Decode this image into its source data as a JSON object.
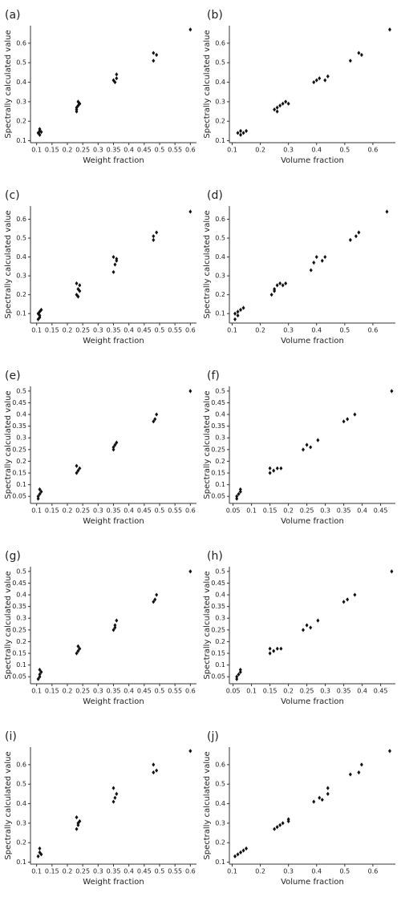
{
  "chart_data": [
    {
      "type": "scatter",
      "title": "(a)",
      "xlabel": "Weight fraction",
      "ylabel": "Spectrally calculated value",
      "color": "#111",
      "x": [
        0.105,
        0.11,
        0.11,
        0.115,
        0.11,
        0.23,
        0.235,
        0.24,
        0.23,
        0.235,
        0.24,
        0.23,
        0.355,
        0.36,
        0.35,
        0.36,
        0.48,
        0.49,
        0.48,
        0.6
      ],
      "values": [
        0.14,
        0.13,
        0.15,
        0.145,
        0.16,
        0.26,
        0.28,
        0.29,
        0.27,
        0.3,
        0.29,
        0.25,
        0.4,
        0.42,
        0.41,
        0.44,
        0.51,
        0.54,
        0.55,
        0.67
      ],
      "xlim": [
        0.08,
        0.62
      ],
      "ylim": [
        0.09,
        0.69
      ],
      "xticks": [
        0.1,
        0.15,
        0.2,
        0.25,
        0.3,
        0.35,
        0.4,
        0.45,
        0.5,
        0.55,
        0.6
      ],
      "yticks": [
        0.1,
        0.2,
        0.3,
        0.4,
        0.5,
        0.6
      ]
    },
    {
      "type": "scatter",
      "title": "(b)",
      "xlabel": "Volume fraction",
      "ylabel": "Spectrally calculated value",
      "color": "#111",
      "x": [
        0.12,
        0.13,
        0.14,
        0.15,
        0.13,
        0.25,
        0.26,
        0.27,
        0.28,
        0.29,
        0.3,
        0.26,
        0.39,
        0.4,
        0.41,
        0.44,
        0.43,
        0.52,
        0.55,
        0.56,
        0.66
      ],
      "values": [
        0.14,
        0.15,
        0.14,
        0.15,
        0.13,
        0.26,
        0.27,
        0.28,
        0.29,
        0.3,
        0.29,
        0.25,
        0.4,
        0.41,
        0.42,
        0.43,
        0.41,
        0.51,
        0.55,
        0.54,
        0.67
      ],
      "xlim": [
        0.09,
        0.68
      ],
      "ylim": [
        0.09,
        0.69
      ],
      "xticks": [
        0.1,
        0.2,
        0.3,
        0.4,
        0.5,
        0.6
      ],
      "yticks": [
        0.1,
        0.2,
        0.3,
        0.4,
        0.5,
        0.6
      ]
    },
    {
      "type": "scatter",
      "title": "(c)",
      "xlabel": "Weight fraction",
      "ylabel": "Spectrally calculated value",
      "color": "#111",
      "x": [
        0.105,
        0.11,
        0.11,
        0.115,
        0.105,
        0.11,
        0.23,
        0.235,
        0.24,
        0.23,
        0.24,
        0.235,
        0.35,
        0.355,
        0.36,
        0.35,
        0.36,
        0.48,
        0.48,
        0.49,
        0.6
      ],
      "values": [
        0.07,
        0.09,
        0.11,
        0.12,
        0.1,
        0.08,
        0.2,
        0.23,
        0.25,
        0.26,
        0.22,
        0.19,
        0.32,
        0.36,
        0.38,
        0.4,
        0.39,
        0.49,
        0.51,
        0.53,
        0.64
      ],
      "xlim": [
        0.08,
        0.62
      ],
      "ylim": [
        0.05,
        0.67
      ],
      "xticks": [
        0.1,
        0.15,
        0.2,
        0.25,
        0.3,
        0.35,
        0.4,
        0.45,
        0.5,
        0.55,
        0.6
      ],
      "yticks": [
        0.1,
        0.2,
        0.3,
        0.4,
        0.5,
        0.6
      ]
    },
    {
      "type": "scatter",
      "title": "(d)",
      "xlabel": "Volume fraction",
      "ylabel": "Spectrally calculated value",
      "color": "#111",
      "x": [
        0.11,
        0.12,
        0.12,
        0.13,
        0.14,
        0.11,
        0.24,
        0.25,
        0.26,
        0.27,
        0.28,
        0.29,
        0.25,
        0.38,
        0.39,
        0.4,
        0.42,
        0.43,
        0.52,
        0.54,
        0.55,
        0.65
      ],
      "values": [
        0.07,
        0.09,
        0.11,
        0.12,
        0.13,
        0.1,
        0.2,
        0.23,
        0.25,
        0.26,
        0.25,
        0.26,
        0.22,
        0.33,
        0.37,
        0.4,
        0.38,
        0.4,
        0.49,
        0.51,
        0.53,
        0.64
      ],
      "xlim": [
        0.09,
        0.68
      ],
      "ylim": [
        0.05,
        0.67
      ],
      "xticks": [
        0.1,
        0.2,
        0.3,
        0.4,
        0.5,
        0.6
      ],
      "yticks": [
        0.1,
        0.2,
        0.3,
        0.4,
        0.5,
        0.6
      ]
    },
    {
      "type": "scatter",
      "title": "(e)",
      "xlabel": "Weight fraction",
      "ylabel": "Spectrally calculated value",
      "color": "#111",
      "x": [
        0.105,
        0.11,
        0.11,
        0.115,
        0.105,
        0.23,
        0.235,
        0.24,
        0.23,
        0.35,
        0.355,
        0.36,
        0.35,
        0.48,
        0.485,
        0.49,
        0.6
      ],
      "values": [
        0.04,
        0.06,
        0.08,
        0.07,
        0.05,
        0.15,
        0.16,
        0.17,
        0.18,
        0.25,
        0.27,
        0.28,
        0.26,
        0.37,
        0.38,
        0.4,
        0.5
      ],
      "xlim": [
        0.08,
        0.62
      ],
      "ylim": [
        0.02,
        0.52
      ],
      "xticks": [
        0.1,
        0.15,
        0.2,
        0.25,
        0.3,
        0.35,
        0.4,
        0.45,
        0.5,
        0.55,
        0.6
      ],
      "yticks": [
        0.05,
        0.1,
        0.15,
        0.2,
        0.25,
        0.3,
        0.35,
        0.4,
        0.45,
        0.5
      ]
    },
    {
      "type": "scatter",
      "title": "(f)",
      "xlabel": "Volume fraction",
      "ylabel": "Spectrally calculated value",
      "color": "#111",
      "x": [
        0.06,
        0.065,
        0.07,
        0.06,
        0.07,
        0.15,
        0.16,
        0.17,
        0.15,
        0.18,
        0.24,
        0.25,
        0.26,
        0.28,
        0.35,
        0.36,
        0.38,
        0.48
      ],
      "values": [
        0.04,
        0.06,
        0.07,
        0.05,
        0.08,
        0.15,
        0.16,
        0.17,
        0.17,
        0.17,
        0.25,
        0.27,
        0.26,
        0.29,
        0.37,
        0.38,
        0.4,
        0.5
      ],
      "xlim": [
        0.04,
        0.49
      ],
      "ylim": [
        0.02,
        0.52
      ],
      "xticks": [
        0.05,
        0.1,
        0.15,
        0.2,
        0.25,
        0.3,
        0.35,
        0.4,
        0.45
      ],
      "yticks": [
        0.05,
        0.1,
        0.15,
        0.2,
        0.25,
        0.3,
        0.35,
        0.4,
        0.45,
        0.5
      ]
    },
    {
      "type": "scatter",
      "title": "(g)",
      "xlabel": "Weight fraction",
      "ylabel": "Spectrally calculated value",
      "color": "#111",
      "x": [
        0.105,
        0.11,
        0.11,
        0.115,
        0.11,
        0.23,
        0.235,
        0.24,
        0.235,
        0.35,
        0.355,
        0.36,
        0.355,
        0.48,
        0.485,
        0.49,
        0.6
      ],
      "values": [
        0.04,
        0.06,
        0.08,
        0.07,
        0.05,
        0.15,
        0.16,
        0.17,
        0.18,
        0.25,
        0.27,
        0.29,
        0.26,
        0.37,
        0.38,
        0.4,
        0.5
      ],
      "xlim": [
        0.08,
        0.62
      ],
      "ylim": [
        0.02,
        0.52
      ],
      "xticks": [
        0.1,
        0.15,
        0.2,
        0.25,
        0.3,
        0.35,
        0.4,
        0.45,
        0.5,
        0.55,
        0.6
      ],
      "yticks": [
        0.05,
        0.1,
        0.15,
        0.2,
        0.25,
        0.3,
        0.35,
        0.4,
        0.45,
        0.5
      ]
    },
    {
      "type": "scatter",
      "title": "(h)",
      "xlabel": "Volume fraction",
      "ylabel": "Spectrally calculated value",
      "color": "#111",
      "x": [
        0.06,
        0.065,
        0.07,
        0.06,
        0.07,
        0.15,
        0.16,
        0.17,
        0.15,
        0.18,
        0.24,
        0.25,
        0.26,
        0.28,
        0.35,
        0.36,
        0.38,
        0.48
      ],
      "values": [
        0.05,
        0.06,
        0.07,
        0.04,
        0.08,
        0.15,
        0.16,
        0.17,
        0.17,
        0.17,
        0.25,
        0.27,
        0.26,
        0.29,
        0.37,
        0.38,
        0.4,
        0.5
      ],
      "xlim": [
        0.04,
        0.49
      ],
      "ylim": [
        0.02,
        0.52
      ],
      "xticks": [
        0.05,
        0.1,
        0.15,
        0.2,
        0.25,
        0.3,
        0.35,
        0.4,
        0.45
      ],
      "yticks": [
        0.05,
        0.1,
        0.15,
        0.2,
        0.25,
        0.3,
        0.35,
        0.4,
        0.45,
        0.5
      ]
    },
    {
      "type": "scatter",
      "title": "(i)",
      "xlabel": "Weight fraction",
      "ylabel": "Spectrally calculated value",
      "color": "#111",
      "x": [
        0.105,
        0.11,
        0.11,
        0.115,
        0.23,
        0.235,
        0.24,
        0.23,
        0.235,
        0.35,
        0.355,
        0.36,
        0.35,
        0.48,
        0.49,
        0.48,
        0.6
      ],
      "values": [
        0.13,
        0.15,
        0.17,
        0.14,
        0.27,
        0.29,
        0.31,
        0.33,
        0.3,
        0.41,
        0.43,
        0.45,
        0.48,
        0.56,
        0.57,
        0.6,
        0.67
      ],
      "xlim": [
        0.08,
        0.62
      ],
      "ylim": [
        0.09,
        0.69
      ],
      "xticks": [
        0.1,
        0.15,
        0.2,
        0.25,
        0.3,
        0.35,
        0.4,
        0.45,
        0.5,
        0.55,
        0.6
      ],
      "yticks": [
        0.1,
        0.2,
        0.3,
        0.4,
        0.5,
        0.6
      ]
    },
    {
      "type": "scatter",
      "title": "(j)",
      "xlabel": "Volume fraction",
      "ylabel": "Spectrally calculated value",
      "color": "#111",
      "x": [
        0.11,
        0.12,
        0.13,
        0.14,
        0.15,
        0.25,
        0.26,
        0.27,
        0.28,
        0.3,
        0.3,
        0.39,
        0.41,
        0.42,
        0.44,
        0.44,
        0.52,
        0.55,
        0.56,
        0.66
      ],
      "values": [
        0.13,
        0.14,
        0.15,
        0.16,
        0.17,
        0.27,
        0.28,
        0.29,
        0.3,
        0.32,
        0.31,
        0.41,
        0.43,
        0.42,
        0.45,
        0.48,
        0.55,
        0.56,
        0.6,
        0.67
      ],
      "xlim": [
        0.09,
        0.68
      ],
      "ylim": [
        0.09,
        0.69
      ],
      "xticks": [
        0.1,
        0.2,
        0.3,
        0.4,
        0.5,
        0.6
      ],
      "yticks": [
        0.1,
        0.2,
        0.3,
        0.4,
        0.5,
        0.6
      ]
    }
  ]
}
